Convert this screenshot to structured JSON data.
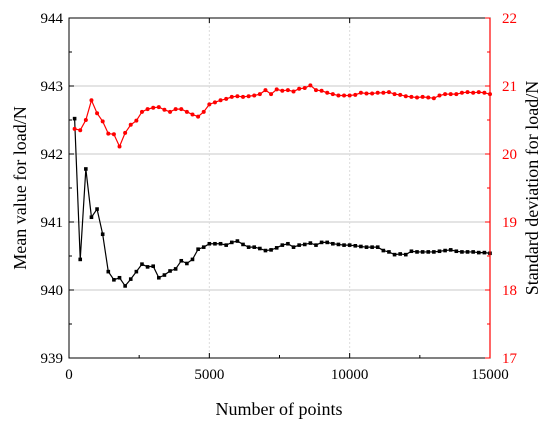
{
  "chart_data": {
    "type": "line",
    "xlabel": "Number of points",
    "ylabel_left": "Mean value for load/N",
    "ylabel_right": "Standard deviation for load/N",
    "xlim": [
      0,
      15000
    ],
    "ylim_left": [
      939,
      944
    ],
    "ylim_right": [
      17,
      22
    ],
    "x_ticks": [
      0,
      5000,
      10000,
      15000
    ],
    "y_ticks_left": [
      939,
      940,
      941,
      942,
      943,
      944
    ],
    "y_ticks_right": [
      17,
      18,
      19,
      20,
      21,
      22
    ],
    "x_tick_labels": [
      "0",
      "5000",
      "10000",
      "15000"
    ],
    "y_tick_labels_left": [
      "939",
      "940",
      "941",
      "942",
      "943",
      "944"
    ],
    "y_tick_labels_right": [
      "17",
      "18",
      "19",
      "20",
      "21",
      "22"
    ],
    "grid": true,
    "colors": {
      "mean": "#000000",
      "std": "#ff0000",
      "grid": "#c8c8c8"
    },
    "series": [
      {
        "axis": "left",
        "color": "#000000",
        "marker": "square",
        "x": [
          200,
          400,
          600,
          800,
          1000,
          1200,
          1400,
          1600,
          1800,
          2000,
          2200,
          2400,
          2600,
          2800,
          3000,
          3200,
          3400,
          3600,
          3800,
          4000,
          4200,
          4400,
          4600,
          4800,
          5000,
          5200,
          5400,
          5600,
          5800,
          6000,
          6200,
          6400,
          6600,
          6800,
          7000,
          7200,
          7400,
          7600,
          7800,
          8000,
          8200,
          8400,
          8600,
          8800,
          9000,
          9200,
          9400,
          9600,
          9800,
          10000,
          10200,
          10400,
          10600,
          10800,
          11000,
          11200,
          11400,
          11600,
          11800,
          12000,
          12200,
          12400,
          12600,
          12800,
          13000,
          13200,
          13400,
          13600,
          13800,
          14000,
          14200,
          14400,
          14600,
          14800,
          15000
        ],
        "values": [
          942.52,
          940.45,
          941.78,
          941.07,
          941.19,
          940.82,
          940.27,
          940.15,
          940.18,
          940.06,
          940.16,
          940.27,
          940.38,
          940.34,
          940.35,
          940.18,
          940.22,
          940.28,
          940.31,
          940.43,
          940.39,
          940.45,
          940.6,
          940.63,
          940.68,
          940.68,
          940.68,
          940.66,
          940.7,
          940.72,
          940.67,
          940.63,
          940.63,
          940.61,
          940.58,
          940.59,
          940.62,
          940.66,
          940.68,
          940.63,
          940.66,
          940.67,
          940.69,
          940.66,
          940.7,
          940.7,
          940.68,
          940.67,
          940.66,
          940.66,
          940.65,
          940.64,
          940.63,
          940.63,
          940.63,
          940.58,
          940.56,
          940.52,
          940.53,
          940.52,
          940.57,
          940.56,
          940.56,
          940.56,
          940.56,
          940.57,
          940.58,
          940.59,
          940.57,
          940.56,
          940.56,
          940.56,
          940.55,
          940.55,
          940.54
        ]
      },
      {
        "axis": "right",
        "color": "#ff0000",
        "marker": "circle",
        "x": [
          200,
          400,
          600,
          800,
          1000,
          1200,
          1400,
          1600,
          1800,
          2000,
          2200,
          2400,
          2600,
          2800,
          3000,
          3200,
          3400,
          3600,
          3800,
          4000,
          4200,
          4400,
          4600,
          4800,
          5000,
          5200,
          5400,
          5600,
          5800,
          6000,
          6200,
          6400,
          6600,
          6800,
          7000,
          7200,
          7400,
          7600,
          7800,
          8000,
          8200,
          8400,
          8600,
          8800,
          9000,
          9200,
          9400,
          9600,
          9800,
          10000,
          10200,
          10400,
          10600,
          10800,
          11000,
          11200,
          11400,
          11600,
          11800,
          12000,
          12200,
          12400,
          12600,
          12800,
          13000,
          13200,
          13400,
          13600,
          13800,
          14000,
          14200,
          14400,
          14600,
          14800,
          15000
        ],
        "values": [
          20.37,
          20.35,
          20.5,
          20.79,
          20.6,
          20.48,
          20.3,
          20.29,
          20.11,
          20.31,
          20.43,
          20.49,
          20.62,
          20.66,
          20.68,
          20.69,
          20.65,
          20.62,
          20.66,
          20.66,
          20.62,
          20.58,
          20.55,
          20.62,
          20.73,
          20.76,
          20.79,
          20.81,
          20.84,
          20.85,
          20.84,
          20.85,
          20.86,
          20.88,
          20.94,
          20.88,
          20.95,
          20.93,
          20.94,
          20.92,
          20.96,
          20.97,
          21.01,
          20.94,
          20.93,
          20.9,
          20.88,
          20.86,
          20.86,
          20.86,
          20.87,
          20.9,
          20.89,
          20.89,
          20.9,
          20.9,
          20.91,
          20.88,
          20.87,
          20.85,
          20.84,
          20.83,
          20.84,
          20.83,
          20.82,
          20.86,
          20.88,
          20.88,
          20.88,
          20.9,
          20.91,
          20.9,
          20.91,
          20.9,
          20.88
        ]
      }
    ]
  }
}
